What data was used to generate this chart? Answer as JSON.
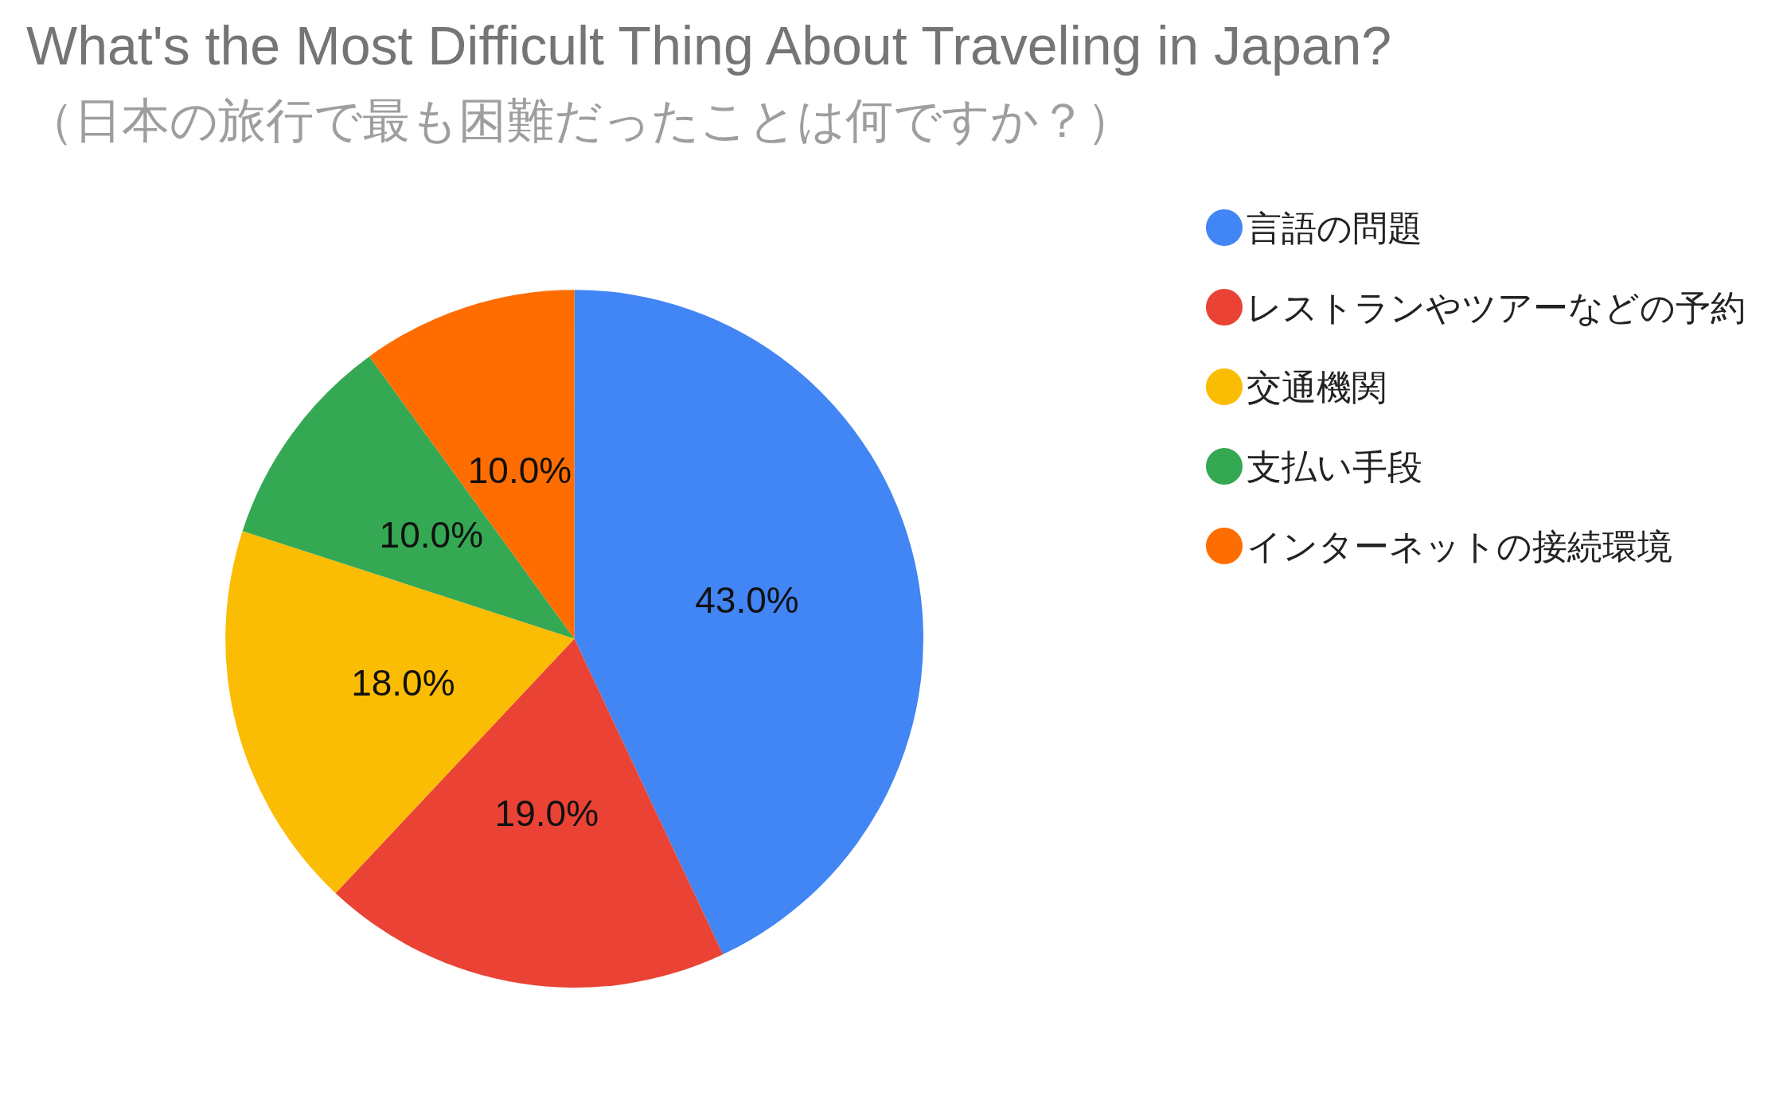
{
  "chart_data": {
    "type": "pie",
    "title": "What's the Most Difficult Thing About Traveling in Japan?",
    "subtitle": "（日本の旅行で最も困難だったことは何ですか？）",
    "categories": [
      "言語の問題",
      "レストランやツアーなどの予約",
      "交通機関",
      "支払い手段",
      "インターネットの接続環境"
    ],
    "values": [
      43,
      19,
      18,
      10,
      10
    ],
    "colors": [
      "#4285f4",
      "#ea4335",
      "#fbbc04",
      "#34a853",
      "#ff6d01"
    ],
    "value_labels": [
      "43.0%",
      "19.0%",
      "18.0%",
      "10.0%",
      "10.0%"
    ],
    "legend": "top right"
  }
}
